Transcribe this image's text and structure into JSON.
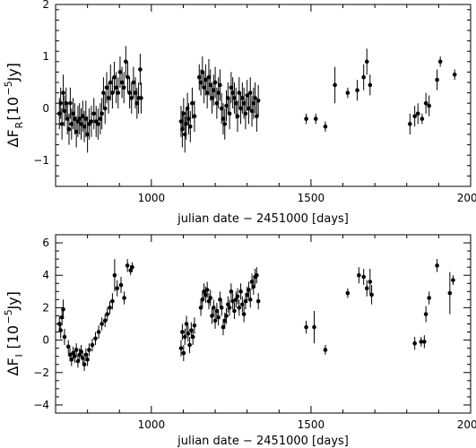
{
  "chart_data": [
    {
      "type": "scatter",
      "title": "",
      "xlabel": "julian date − 2451000 [days]",
      "ylabel": "ΔF",
      "ylabel_subscript": "R",
      "ylabel_unit": "[10",
      "ylabel_exp": "−5",
      "ylabel_unit_end": "Jy]",
      "xlim": [
        700,
        2000
      ],
      "ylim": [
        -1.5,
        2
      ],
      "xticks": [
        1000,
        1500,
        2000
      ],
      "yticks": [
        -1,
        0,
        1,
        2
      ],
      "xtick_labels": [
        "1000",
        "1500",
        "2000"
      ],
      "ytick_labels": [
        "−1",
        "0",
        "1",
        "2"
      ],
      "grid": false,
      "error_bars": true,
      "series": [
        {
          "x": [
            712,
            716,
            720,
            724,
            728,
            733,
            737,
            742,
            746,
            750,
            755,
            760,
            765,
            770,
            775,
            780,
            785,
            790,
            795,
            800,
            805,
            812,
            820,
            827,
            833,
            840,
            845,
            850,
            855,
            860,
            866,
            872,
            878,
            884,
            890,
            896,
            902,
            908,
            914,
            920,
            926,
            932,
            938,
            944,
            950,
            955,
            960,
            965,
            968,
            1093,
            1097,
            1101,
            1105,
            1109,
            1113,
            1117,
            1122,
            1128,
            1135,
            1150,
            1155,
            1160,
            1165,
            1170,
            1175,
            1180,
            1185,
            1190,
            1195,
            1200,
            1205,
            1210,
            1215,
            1220,
            1225,
            1230,
            1235,
            1240,
            1245,
            1250,
            1255,
            1260,
            1265,
            1270,
            1275,
            1280,
            1285,
            1290,
            1295,
            1300,
            1305,
            1310,
            1315,
            1320,
            1325,
            1330,
            1335,
            1485,
            1515,
            1545,
            1575,
            1615,
            1645,
            1665,
            1675,
            1685,
            1810,
            1825,
            1835,
            1848,
            1860,
            1870,
            1895,
            1905,
            1950
          ],
          "y": [
            -0.1,
            0.1,
            -0.3,
            0.3,
            -0.05,
            0.1,
            -0.2,
            -0.4,
            0.1,
            -0.3,
            -0.1,
            -0.2,
            -0.45,
            -0.25,
            -0.2,
            -0.3,
            -0.15,
            -0.35,
            -0.2,
            -0.5,
            -0.3,
            -0.25,
            -0.1,
            -0.25,
            -0.3,
            -0.2,
            -0.1,
            0.3,
            0.0,
            0.4,
            0.2,
            0.5,
            0.3,
            0.6,
            0.4,
            0.3,
            0.7,
            0.5,
            0.4,
            0.9,
            0.6,
            0.3,
            0.2,
            0.5,
            0.3,
            0.1,
            0.2,
            0.75,
            0.2,
            -0.25,
            -0.4,
            -0.1,
            -0.5,
            -0.3,
            0.0,
            -0.2,
            -0.35,
            0.1,
            -0.15,
            0.6,
            0.5,
            0.7,
            0.4,
            0.55,
            0.3,
            0.6,
            0.45,
            0.2,
            0.35,
            0.5,
            0.1,
            0.3,
            0.45,
            0.0,
            -0.2,
            -0.3,
            0.05,
            0.2,
            -0.1,
            0.4,
            0.3,
            0.2,
            0.1,
            -0.15,
            0.3,
            0.0,
            0.2,
            0.1,
            -0.1,
            0.25,
            0.0,
            0.3,
            -0.05,
            0.1,
            0.2,
            -0.15,
            0.15,
            -0.2,
            -0.2,
            -0.35,
            0.45,
            0.3,
            0.35,
            0.6,
            0.9,
            0.45,
            -0.3,
            -0.15,
            -0.1,
            -0.2,
            0.1,
            0.05,
            0.55,
            0.9,
            0.65
          ],
          "err": [
            0.3,
            0.3,
            0.3,
            0.35,
            0.3,
            0.3,
            0.3,
            0.3,
            0.3,
            0.3,
            0.3,
            0.3,
            0.3,
            0.3,
            0.3,
            0.3,
            0.3,
            0.3,
            0.35,
            0.35,
            0.3,
            0.3,
            0.3,
            0.3,
            0.3,
            0.3,
            0.3,
            0.3,
            0.3,
            0.3,
            0.3,
            0.35,
            0.3,
            0.3,
            0.3,
            0.3,
            0.3,
            0.3,
            0.3,
            0.3,
            0.3,
            0.3,
            0.3,
            0.3,
            0.3,
            0.3,
            0.3,
            0.3,
            0.3,
            0.3,
            0.35,
            0.3,
            0.35,
            0.3,
            0.3,
            0.3,
            0.3,
            0.3,
            0.3,
            0.25,
            0.25,
            0.3,
            0.3,
            0.3,
            0.3,
            0.35,
            0.3,
            0.3,
            0.3,
            0.3,
            0.3,
            0.3,
            0.3,
            0.3,
            0.3,
            0.3,
            0.3,
            0.3,
            0.3,
            0.3,
            0.3,
            0.3,
            0.3,
            0.3,
            0.3,
            0.3,
            0.3,
            0.3,
            0.3,
            0.3,
            0.3,
            0.3,
            0.3,
            0.3,
            0.3,
            0.3,
            0.3,
            0.1,
            0.1,
            0.1,
            0.35,
            0.1,
            0.2,
            0.25,
            0.25,
            0.2,
            0.2,
            0.2,
            0.2,
            0.1,
            0.2,
            0.2,
            0.2,
            0.1,
            0.1
          ]
        }
      ]
    },
    {
      "type": "scatter",
      "title": "",
      "xlabel": "julian date − 2451000 [days]",
      "ylabel": "ΔF",
      "ylabel_subscript": "I",
      "ylabel_unit": "[10",
      "ylabel_exp": "−5",
      "ylabel_unit_end": "Jy]",
      "xlim": [
        700,
        2000
      ],
      "ylim": [
        -4.5,
        6.5
      ],
      "xticks": [
        1000,
        1500,
        2000
      ],
      "yticks": [
        -4,
        -2,
        0,
        2,
        4,
        6
      ],
      "xtick_labels": [
        "1000",
        "1500",
        "2000"
      ],
      "ytick_labels": [
        "−4",
        "−2",
        "0",
        "2",
        "4",
        "6"
      ],
      "grid": false,
      "error_bars": true,
      "series": [
        {
          "x": [
            712,
            716,
            720,
            724,
            728,
            740,
            745,
            750,
            755,
            760,
            765,
            770,
            775,
            780,
            785,
            790,
            795,
            800,
            805,
            815,
            825,
            835,
            845,
            855,
            862,
            870,
            878,
            885,
            893,
            905,
            915,
            925,
            935,
            940,
            1093,
            1097,
            1101,
            1105,
            1110,
            1115,
            1120,
            1125,
            1130,
            1135,
            1155,
            1160,
            1165,
            1170,
            1175,
            1180,
            1185,
            1190,
            1195,
            1200,
            1205,
            1210,
            1215,
            1220,
            1225,
            1230,
            1235,
            1240,
            1245,
            1250,
            1255,
            1260,
            1265,
            1270,
            1275,
            1280,
            1285,
            1290,
            1295,
            1300,
            1305,
            1310,
            1315,
            1320,
            1325,
            1330,
            1335,
            1485,
            1510,
            1545,
            1615,
            1650,
            1665,
            1675,
            1685,
            1690,
            1825,
            1845,
            1855,
            1860,
            1870,
            1895,
            1935,
            1945
          ],
          "y": [
            1.0,
            0.6,
            1.4,
            1.9,
            0.2,
            -0.4,
            -0.9,
            -1.2,
            -0.8,
            -1.0,
            -0.6,
            -1.3,
            -0.9,
            -0.7,
            -1.1,
            -1.5,
            -0.9,
            -1.2,
            -0.6,
            -0.3,
            0.1,
            0.5,
            1.0,
            1.2,
            1.6,
            2.0,
            2.4,
            4.0,
            3.2,
            3.4,
            2.6,
            4.6,
            4.3,
            4.5,
            -0.5,
            0.5,
            -0.8,
            0.2,
            1.0,
            0.4,
            -0.3,
            0.6,
            0.2,
            0.9,
            2.0,
            2.5,
            3.0,
            2.8,
            3.1,
            2.4,
            2.6,
            1.5,
            2.0,
            1.2,
            1.8,
            1.4,
            2.5,
            2.0,
            0.8,
            1.2,
            1.5,
            2.2,
            2.0,
            3.0,
            2.4,
            1.8,
            2.5,
            2.7,
            2.0,
            3.0,
            2.2,
            1.6,
            2.4,
            2.8,
            3.1,
            2.5,
            3.6,
            3.3,
            3.9,
            4.0,
            2.4,
            0.8,
            0.8,
            -0.6,
            2.9,
            4.0,
            3.9,
            3.2,
            3.6,
            2.8,
            -0.2,
            -0.1,
            -0.1,
            1.6,
            2.6,
            4.6,
            2.9,
            3.7
          ],
          "err": [
            0.5,
            0.5,
            0.5,
            0.6,
            0.5,
            0.4,
            0.4,
            0.4,
            0.4,
            0.4,
            0.4,
            0.4,
            0.4,
            0.4,
            0.4,
            0.4,
            0.4,
            0.4,
            0.4,
            0.4,
            0.4,
            0.4,
            0.4,
            0.4,
            0.4,
            0.4,
            0.5,
            1.0,
            0.5,
            0.5,
            0.4,
            0.4,
            0.3,
            0.3,
            0.5,
            0.5,
            0.5,
            0.5,
            0.5,
            0.5,
            0.5,
            0.5,
            0.5,
            0.5,
            0.5,
            0.5,
            0.5,
            0.5,
            0.5,
            0.5,
            0.5,
            0.5,
            0.5,
            0.5,
            0.5,
            0.5,
            0.5,
            0.5,
            0.5,
            0.5,
            0.5,
            0.5,
            0.5,
            0.5,
            0.5,
            0.5,
            0.5,
            0.5,
            0.5,
            0.5,
            0.5,
            0.5,
            0.5,
            0.5,
            0.5,
            0.5,
            0.5,
            0.5,
            0.5,
            0.5,
            0.5,
            0.4,
            1.0,
            0.3,
            0.3,
            0.5,
            0.5,
            0.5,
            0.8,
            0.6,
            0.4,
            0.3,
            0.4,
            0.5,
            0.4,
            0.4,
            1.3,
            0.3
          ]
        }
      ]
    }
  ]
}
